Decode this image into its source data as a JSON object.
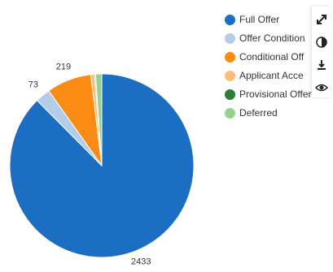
{
  "chart_data": {
    "type": "pie",
    "series": [
      {
        "label": "Full Offer",
        "value": 2433,
        "color": "#1b6ec2"
      },
      {
        "label": "Offer Condition",
        "value": 73,
        "color": "#b3cde9"
      },
      {
        "label": "Conditional Offer",
        "value": 219,
        "color": "#fa8c16"
      },
      {
        "label": "Applicant Accepted",
        "value": 18,
        "color": "#ffbb78"
      },
      {
        "label": "Provisional Offer",
        "value": 5,
        "color": "#2e7d32"
      },
      {
        "label": "Deferred",
        "value": 30,
        "color": "#95d18f"
      }
    ],
    "data_labels": [
      "2433",
      "73",
      "219"
    ],
    "legend_position": "top-right"
  },
  "legend": {
    "items": [
      {
        "label": "Full Offer",
        "color": "#1b6ec2"
      },
      {
        "label": "Offer Condition",
        "color": "#b3cde9"
      },
      {
        "label": "Conditional Off",
        "color": "#fa8c16"
      },
      {
        "label": "Applicant Acce",
        "color": "#ffbb78"
      },
      {
        "label": "Provisional Offer",
        "color": "#2e7d32"
      },
      {
        "label": "Deferred",
        "color": "#95d18f"
      }
    ]
  },
  "toolbar": {
    "icons": [
      "expand-icon",
      "contrast-icon",
      "download-icon",
      "eye-icon"
    ]
  }
}
